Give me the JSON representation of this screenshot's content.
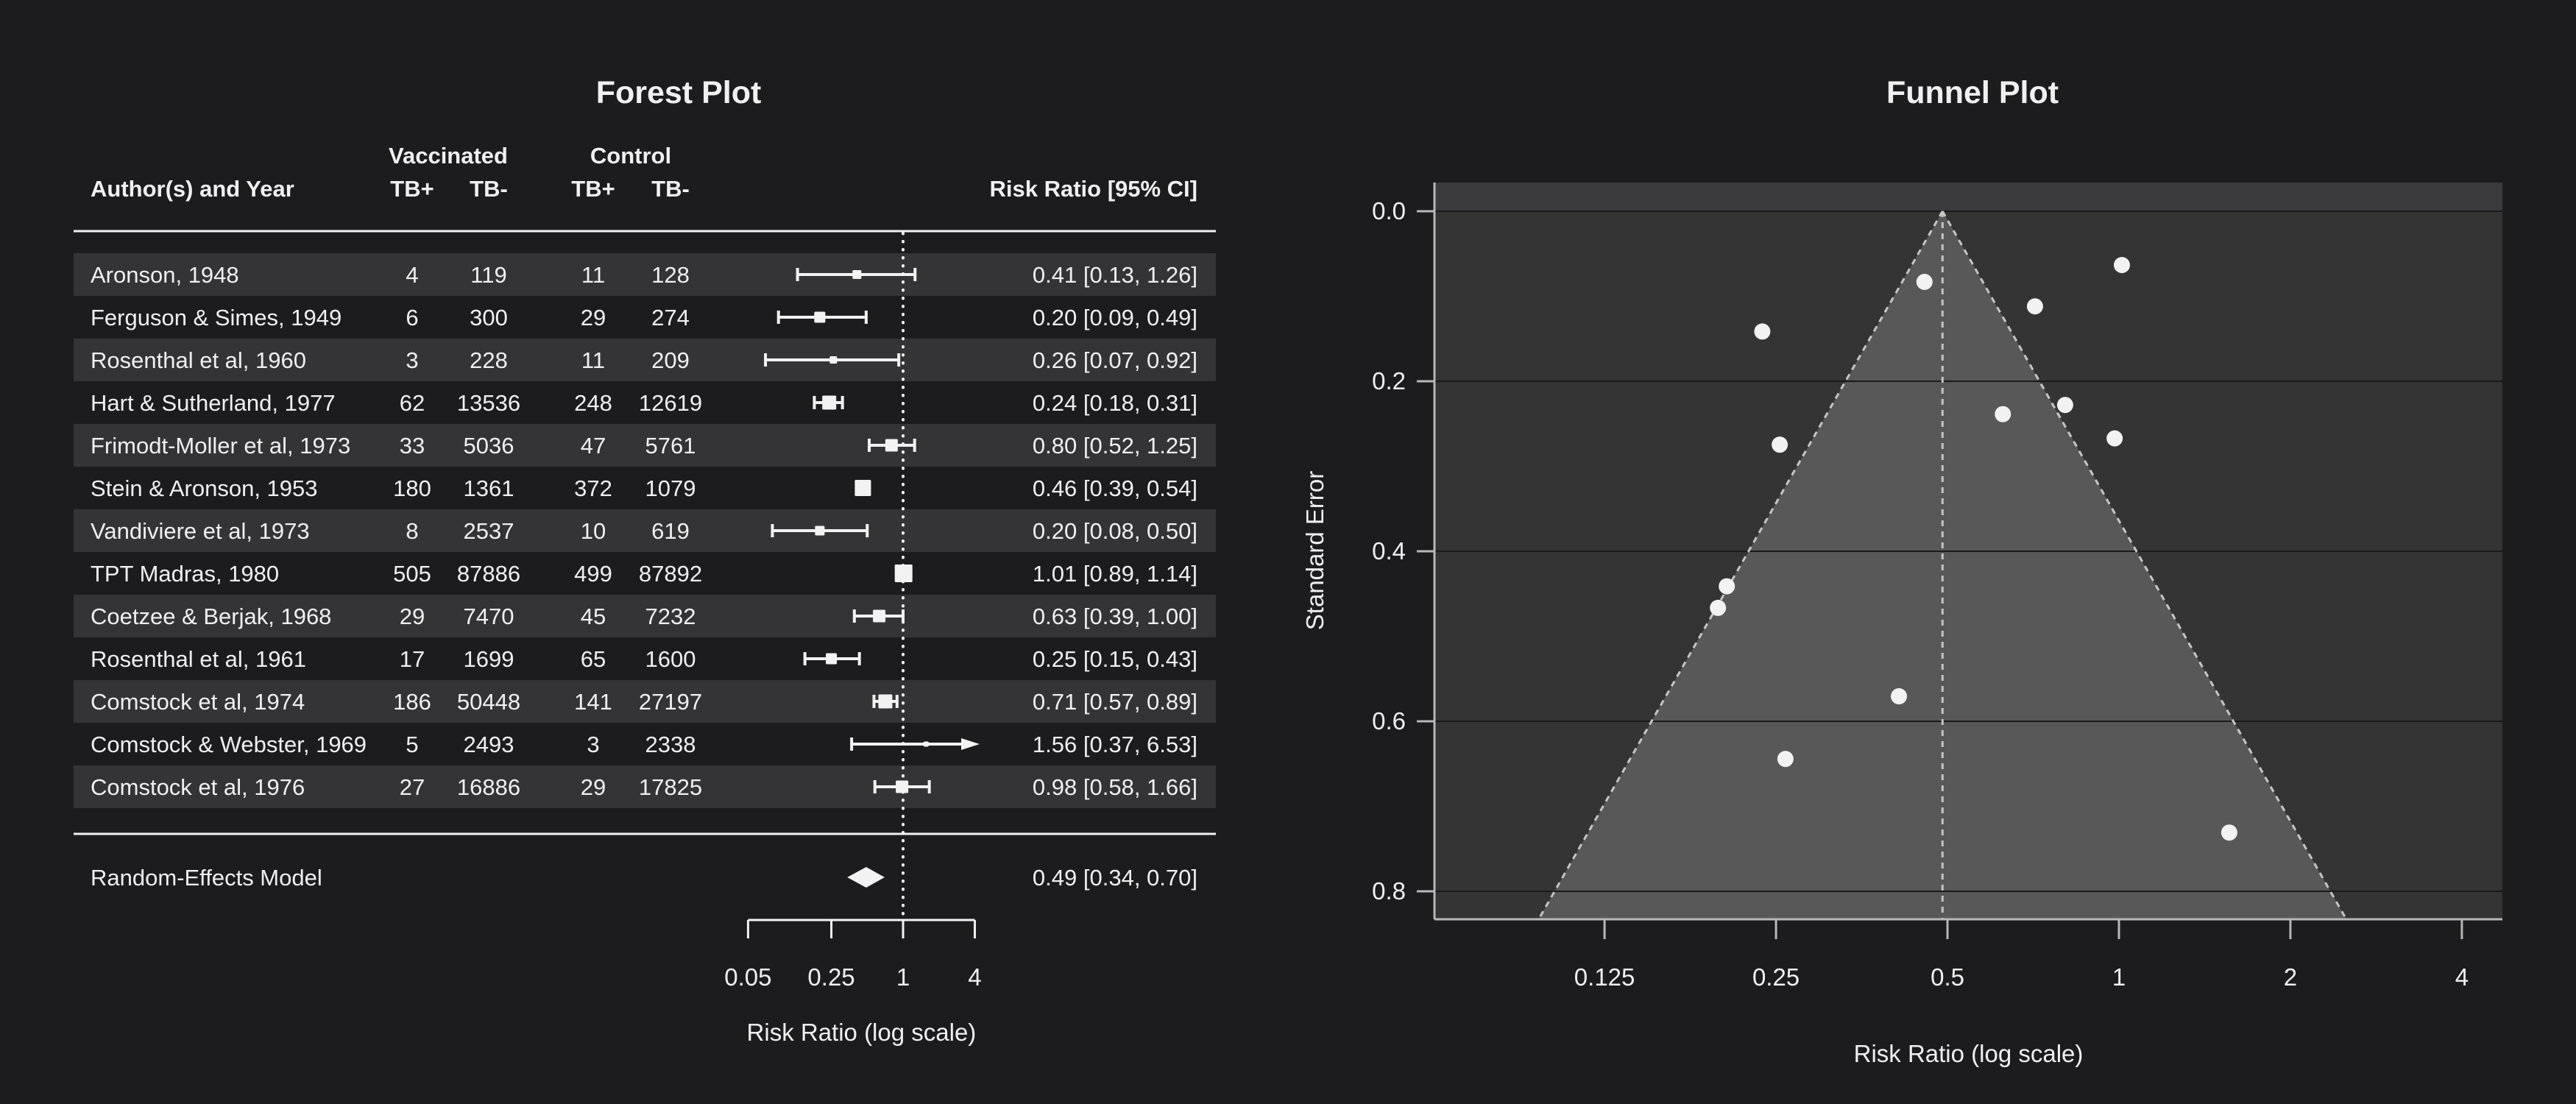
{
  "colors": {
    "page_bg": "#1c1c1e",
    "text": "#f0f0f0",
    "stripe": "#343436",
    "marks": "#f2f2f2",
    "separator": "#f0f0f0",
    "plot_bg": "#343434",
    "plot_bg_top_band": "#3b3b3d",
    "funnel_fill": "#585858",
    "dashed_line": "#c6c6c6",
    "gridline": "#1a1a1a",
    "axis": "#b8b8b8"
  },
  "chart_data": [
    {
      "type": "forest",
      "title": "Forest Plot",
      "columns": {
        "author": "Author(s) and Year",
        "group1": "Vaccinated",
        "group2": "Control",
        "sub": [
          "TB+",
          "TB-",
          "TB+",
          "TB-"
        ],
        "effect": "Risk Ratio [95% CI]"
      },
      "xlabel": "Risk Ratio (log scale)",
      "x_ticks": [
        "0.05",
        "0.25",
        "1",
        "4"
      ],
      "x_axis_range": [
        0.05,
        4
      ],
      "refline": 1,
      "log_scale": true,
      "studies": [
        {
          "author": "Aronson, 1948",
          "counts": [
            4,
            119,
            11,
            128
          ],
          "est": 0.41,
          "lo": 0.13,
          "hi": 1.26,
          "ci_text": "0.41 [0.13, 1.26]",
          "psize": 12
        },
        {
          "author": "Ferguson & Simes, 1949",
          "counts": [
            6,
            300,
            29,
            274
          ],
          "est": 0.2,
          "lo": 0.09,
          "hi": 0.49,
          "ci_text": "0.20 [0.09, 0.49]",
          "psize": 15
        },
        {
          "author": "Rosenthal et al, 1960",
          "counts": [
            3,
            228,
            11,
            209
          ],
          "est": 0.26,
          "lo": 0.07,
          "hi": 0.92,
          "ci_text": "0.26 [0.07, 0.92]",
          "psize": 10
        },
        {
          "author": "Hart & Sutherland, 1977",
          "counts": [
            62,
            13536,
            248,
            12619
          ],
          "est": 0.24,
          "lo": 0.18,
          "hi": 0.31,
          "ci_text": "0.24 [0.18, 0.31]",
          "psize": 19
        },
        {
          "author": "Frimodt-Moller et al, 1973",
          "counts": [
            33,
            5036,
            47,
            5761
          ],
          "est": 0.8,
          "lo": 0.52,
          "hi": 1.25,
          "ci_text": "0.80 [0.52, 1.25]",
          "psize": 17
        },
        {
          "author": "Stein & Aronson, 1953",
          "counts": [
            180,
            1361,
            372,
            1079
          ],
          "est": 0.46,
          "lo": 0.39,
          "hi": 0.54,
          "ci_text": "0.46 [0.39, 0.54]",
          "psize": 22
        },
        {
          "author": "Vandiviere et al, 1973",
          "counts": [
            8,
            2537,
            10,
            619
          ],
          "est": 0.2,
          "lo": 0.08,
          "hi": 0.5,
          "ci_text": "0.20 [0.08, 0.50]",
          "psize": 13
        },
        {
          "author": "TPT Madras, 1980",
          "counts": [
            505,
            87886,
            499,
            87892
          ],
          "est": 1.01,
          "lo": 0.89,
          "hi": 1.14,
          "ci_text": "1.01 [0.89, 1.14]",
          "psize": 24
        },
        {
          "author": "Coetzee & Berjak, 1968",
          "counts": [
            29,
            7470,
            45,
            7232
          ],
          "est": 0.63,
          "lo": 0.39,
          "hi": 1.0,
          "ci_text": "0.63 [0.39, 1.00]",
          "psize": 17
        },
        {
          "author": "Rosenthal et al, 1961",
          "counts": [
            17,
            1699,
            65,
            1600
          ],
          "est": 0.25,
          "lo": 0.15,
          "hi": 0.43,
          "ci_text": "0.25 [0.15, 0.43]",
          "psize": 15
        },
        {
          "author": "Comstock et al, 1974",
          "counts": [
            186,
            50448,
            141,
            27197
          ],
          "est": 0.71,
          "lo": 0.57,
          "hi": 0.89,
          "ci_text": "0.71 [0.57, 0.89]",
          "psize": 19
        },
        {
          "author": "Comstock & Webster, 1969",
          "counts": [
            5,
            2493,
            3,
            2338
          ],
          "est": 1.56,
          "lo": 0.37,
          "hi": 6.53,
          "ci_text": "1.56 [0.37, 6.53]",
          "psize": 7,
          "arrow": true
        },
        {
          "author": "Comstock et al, 1976",
          "counts": [
            27,
            16886,
            29,
            17825
          ],
          "est": 0.98,
          "lo": 0.58,
          "hi": 1.66,
          "ci_text": "0.98 [0.58, 1.66]",
          "psize": 17
        }
      ],
      "summary": {
        "label": "Random-Effects Model",
        "est": 0.49,
        "lo": 0.34,
        "hi": 0.7,
        "ci_text": "0.49 [0.34, 0.70]"
      }
    },
    {
      "type": "funnel",
      "title": "Funnel Plot",
      "xlabel": "Risk Ratio (log scale)",
      "ylabel": "Standard Error",
      "x_ticks": [
        "0.125",
        "0.25",
        "0.5",
        "1",
        "2",
        "4"
      ],
      "y_ticks": [
        "0.0",
        "0.2",
        "0.4",
        "0.6",
        "0.8"
      ],
      "y_range": [
        0,
        0.8329
      ],
      "center_estimate": 0.49,
      "ci_level_z": 1.96,
      "points": [
        {
          "study": "Aronson, 1948",
          "rr": 0.4109,
          "se": 0.5706
        },
        {
          "study": "Ferguson & Simes, 1949",
          "rr": 0.2049,
          "se": 0.4412
        },
        {
          "study": "Rosenthal et al, 1960",
          "rr": 0.2597,
          "se": 0.6443
        },
        {
          "study": "Hart & Sutherland, 1977",
          "rr": 0.2365,
          "se": 0.1415
        },
        {
          "study": "Frimodt-Moller et al, 1973",
          "rr": 0.8045,
          "se": 0.2279
        },
        {
          "study": "Stein & Aronson, 1953",
          "rr": 0.4556,
          "se": 0.0831
        },
        {
          "study": "Vandiviere et al, 1973",
          "rr": 0.1977,
          "se": 0.4666
        },
        {
          "study": "TPT Madras, 1980",
          "rr": 1.012,
          "se": 0.0633
        },
        {
          "study": "Coetzee & Berjak, 1968",
          "rr": 0.6254,
          "se": 0.2387
        },
        {
          "study": "Rosenthal et al, 1961",
          "rr": 0.2538,
          "se": 0.2746
        },
        {
          "study": "Comstock et al, 1974",
          "rr": 0.7122,
          "se": 0.1119
        },
        {
          "study": "Comstock & Webster, 1969",
          "rr": 1.5619,
          "se": 0.7309
        },
        {
          "study": "Comstock et al, 1976",
          "rr": 0.9828,
          "se": 0.2672
        }
      ]
    }
  ]
}
